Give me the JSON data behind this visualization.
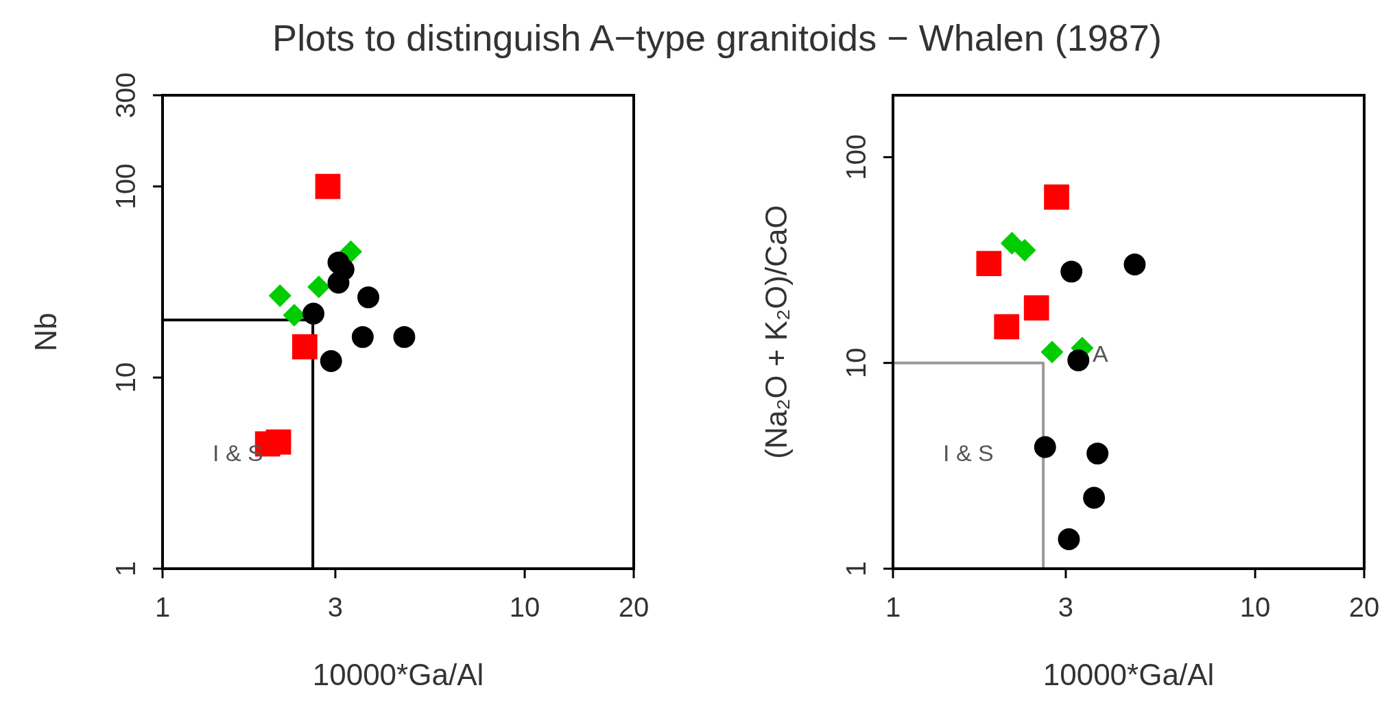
{
  "chart_data": [
    {
      "type": "scatter",
      "title": "Plots to distinguish A−type granitoids − Whalen (1987)",
      "xlabel": "10000*Ga/Al",
      "ylabel": "Nb",
      "log": "xy",
      "xlim": [
        1,
        20
      ],
      "ylim": [
        1,
        300
      ],
      "xticks": [
        1,
        3,
        10,
        20
      ],
      "yticks": [
        1,
        10,
        100,
        300
      ],
      "series": [
        {
          "type": "line",
          "color": "#000000",
          "marker": "none",
          "x": [
            1,
            2.6,
            2.6
          ],
          "values": [
            20,
            20,
            1
          ]
        },
        {
          "type": "scatter",
          "color": "#ff0000",
          "marker": "square",
          "x": [
            2.86,
            2.47,
            1.95,
            2.09
          ],
          "values": [
            100,
            14.5,
            4.5,
            4.6
          ]
        },
        {
          "type": "scatter",
          "color": "#00cc00",
          "marker": "diamond",
          "x": [
            2.11,
            2.31,
            2.7,
            3.31
          ],
          "values": [
            26.8,
            21.2,
            29.8,
            45.6
          ]
        },
        {
          "type": "scatter",
          "color": "#000000",
          "marker": "circle",
          "x": [
            2.61,
            3.06,
            3.16,
            3.06,
            3.7,
            3.57,
            4.65,
            2.92
          ],
          "values": [
            21.6,
            40,
            36.8,
            31.4,
            26.3,
            16.3,
            16.3,
            12.2
          ]
        }
      ],
      "annotations": [
        "I & S"
      ]
    },
    {
      "type": "scatter",
      "xlabel": "10000*Ga/Al",
      "ylabel": "(Na₂O + K₂O)/CaO",
      "log": "xy",
      "xlim": [
        1,
        20
      ],
      "ylim": [
        1,
        200
      ],
      "xticks": [
        1,
        3,
        10,
        20
      ],
      "yticks": [
        1,
        10,
        100
      ],
      "series": [
        {
          "type": "line",
          "color": "#9a9a9a",
          "marker": "none",
          "x": [
            1,
            2.6,
            2.6
          ],
          "values": [
            10,
            10,
            1
          ]
        },
        {
          "type": "scatter",
          "color": "#ff0000",
          "marker": "square",
          "x": [
            2.83,
            1.84,
            2.49,
            2.06
          ],
          "values": [
            64,
            30.4,
            18.5,
            15
          ]
        },
        {
          "type": "scatter",
          "color": "#00cc00",
          "marker": "diamond",
          "x": [
            2.13,
            2.31,
            2.75,
            3.33
          ],
          "values": [
            38.2,
            35.3,
            11.3,
            11.8
          ]
        },
        {
          "type": "scatter",
          "color": "#000000",
          "marker": "circle",
          "x": [
            3.11,
            4.65,
            3.25,
            2.63,
            3.67,
            3.59,
            3.06
          ],
          "values": [
            27.8,
            30.1,
            10.3,
            3.9,
            3.63,
            2.21,
            1.39
          ]
        }
      ],
      "annotations": [
        "I & S",
        "A"
      ]
    }
  ]
}
